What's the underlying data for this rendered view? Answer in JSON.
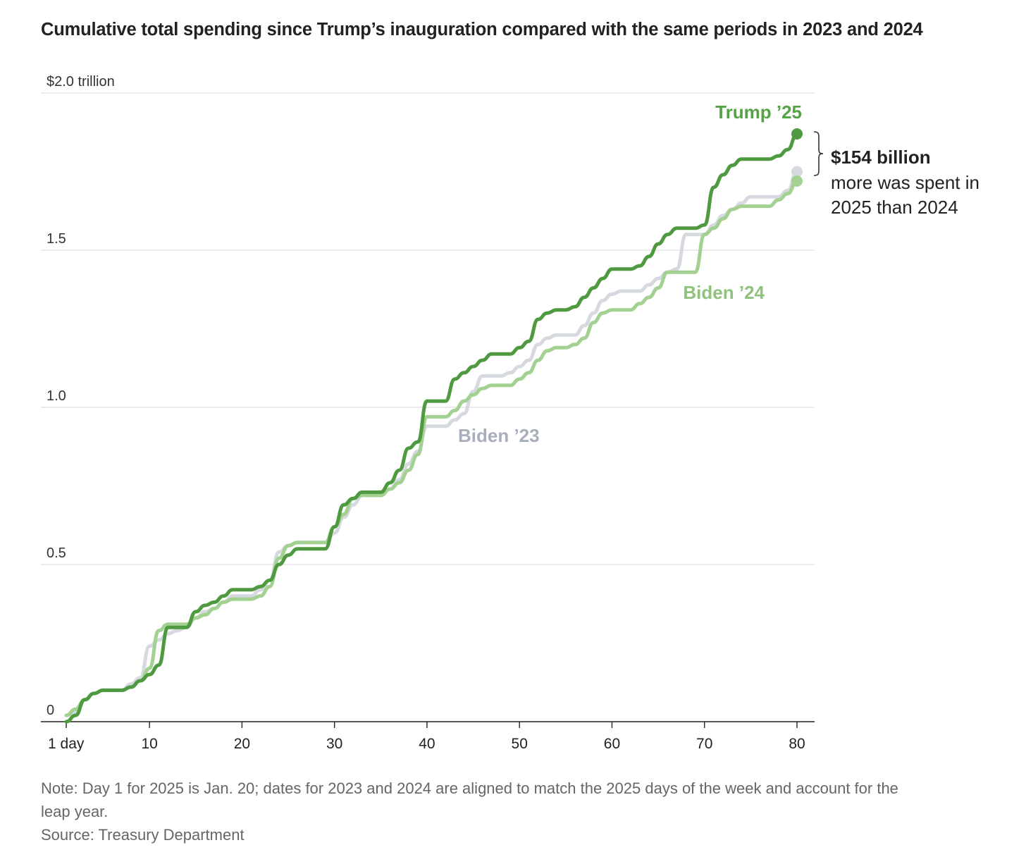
{
  "chart_data": {
    "type": "line",
    "title": "Cumulative total spending since Trump’s inauguration compared with the same periods in 2023 and 2024",
    "ylim": [
      0,
      2.0
    ],
    "xlim": [
      1,
      80
    ],
    "y_ticks": [
      {
        "value": 0,
        "label": "0"
      },
      {
        "value": 0.5,
        "label": "0.5"
      },
      {
        "value": 1.0,
        "label": "1.0"
      },
      {
        "value": 1.5,
        "label": "1.5"
      },
      {
        "value": 2.0,
        "label": "$2.0 trillion"
      }
    ],
    "x_ticks": [
      {
        "value": 1,
        "label": "1 day"
      },
      {
        "value": 10,
        "label": "10"
      },
      {
        "value": 20,
        "label": "20"
      },
      {
        "value": 30,
        "label": "30"
      },
      {
        "value": 40,
        "label": "40"
      },
      {
        "value": 50,
        "label": "50"
      },
      {
        "value": 60,
        "label": "60"
      },
      {
        "value": 70,
        "label": "70"
      },
      {
        "value": 80,
        "label": "80"
      }
    ],
    "grid": true,
    "series": [
      {
        "name": "Biden ’23",
        "color": "#d7d9e0",
        "label_color": "#a9aebd",
        "points": [
          [
            1,
            0.02
          ],
          [
            2,
            0.03
          ],
          [
            3,
            0.07
          ],
          [
            4,
            0.09
          ],
          [
            5,
            0.1
          ],
          [
            6,
            0.1
          ],
          [
            7,
            0.1
          ],
          [
            8,
            0.12
          ],
          [
            9,
            0.14
          ],
          [
            10,
            0.24
          ],
          [
            11,
            0.26
          ],
          [
            12,
            0.28
          ],
          [
            13,
            0.29
          ],
          [
            14,
            0.3
          ],
          [
            15,
            0.33
          ],
          [
            16,
            0.35
          ],
          [
            17,
            0.36
          ],
          [
            18,
            0.38
          ],
          [
            19,
            0.4
          ],
          [
            20,
            0.4
          ],
          [
            21,
            0.4
          ],
          [
            22,
            0.42
          ],
          [
            23,
            0.45
          ],
          [
            24,
            0.54
          ],
          [
            25,
            0.56
          ],
          [
            26,
            0.57
          ],
          [
            27,
            0.57
          ],
          [
            28,
            0.57
          ],
          [
            29,
            0.57
          ],
          [
            30,
            0.6
          ],
          [
            31,
            0.65
          ],
          [
            32,
            0.69
          ],
          [
            33,
            0.72
          ],
          [
            34,
            0.72
          ],
          [
            35,
            0.72
          ],
          [
            36,
            0.74
          ],
          [
            37,
            0.77
          ],
          [
            38,
            0.82
          ],
          [
            39,
            0.86
          ],
          [
            40,
            0.94
          ],
          [
            41,
            0.94
          ],
          [
            42,
            0.94
          ],
          [
            43,
            0.96
          ],
          [
            44,
            0.98
          ],
          [
            45,
            1.05
          ],
          [
            46,
            1.1
          ],
          [
            47,
            1.1
          ],
          [
            48,
            1.1
          ],
          [
            49,
            1.11
          ],
          [
            50,
            1.13
          ],
          [
            51,
            1.15
          ],
          [
            52,
            1.2
          ],
          [
            53,
            1.22
          ],
          [
            54,
            1.23
          ],
          [
            55,
            1.23
          ],
          [
            56,
            1.23
          ],
          [
            57,
            1.26
          ],
          [
            58,
            1.3
          ],
          [
            59,
            1.34
          ],
          [
            60,
            1.36
          ],
          [
            61,
            1.37
          ],
          [
            62,
            1.37
          ],
          [
            63,
            1.37
          ],
          [
            64,
            1.39
          ],
          [
            65,
            1.41
          ],
          [
            66,
            1.43
          ],
          [
            67,
            1.44
          ],
          [
            68,
            1.55
          ],
          [
            69,
            1.55
          ],
          [
            70,
            1.55
          ],
          [
            71,
            1.58
          ],
          [
            72,
            1.61
          ],
          [
            73,
            1.63
          ],
          [
            74,
            1.65
          ],
          [
            75,
            1.67
          ],
          [
            76,
            1.67
          ],
          [
            77,
            1.67
          ],
          [
            78,
            1.67
          ],
          [
            79,
            1.69
          ],
          [
            80,
            1.75
          ]
        ]
      },
      {
        "name": "Biden ’24",
        "color": "#a3d192",
        "label_color": "#8fc27c",
        "points": [
          [
            1,
            0.02
          ],
          [
            2,
            0.04
          ],
          [
            3,
            0.07
          ],
          [
            4,
            0.09
          ],
          [
            5,
            0.1
          ],
          [
            6,
            0.1
          ],
          [
            7,
            0.1
          ],
          [
            8,
            0.11
          ],
          [
            9,
            0.13
          ],
          [
            10,
            0.17
          ],
          [
            11,
            0.29
          ],
          [
            12,
            0.31
          ],
          [
            13,
            0.31
          ],
          [
            14,
            0.31
          ],
          [
            15,
            0.33
          ],
          [
            16,
            0.34
          ],
          [
            17,
            0.36
          ],
          [
            18,
            0.38
          ],
          [
            19,
            0.39
          ],
          [
            20,
            0.39
          ],
          [
            21,
            0.39
          ],
          [
            22,
            0.4
          ],
          [
            23,
            0.43
          ],
          [
            24,
            0.52
          ],
          [
            25,
            0.56
          ],
          [
            26,
            0.57
          ],
          [
            27,
            0.57
          ],
          [
            28,
            0.57
          ],
          [
            29,
            0.57
          ],
          [
            30,
            0.62
          ],
          [
            31,
            0.66
          ],
          [
            32,
            0.71
          ],
          [
            33,
            0.72
          ],
          [
            34,
            0.72
          ],
          [
            35,
            0.72
          ],
          [
            36,
            0.74
          ],
          [
            37,
            0.76
          ],
          [
            38,
            0.8
          ],
          [
            39,
            0.85
          ],
          [
            40,
            0.97
          ],
          [
            41,
            0.97
          ],
          [
            42,
            0.97
          ],
          [
            43,
            0.99
          ],
          [
            44,
            1.02
          ],
          [
            45,
            1.04
          ],
          [
            46,
            1.06
          ],
          [
            47,
            1.07
          ],
          [
            48,
            1.07
          ],
          [
            49,
            1.07
          ],
          [
            50,
            1.09
          ],
          [
            51,
            1.11
          ],
          [
            52,
            1.15
          ],
          [
            53,
            1.18
          ],
          [
            54,
            1.19
          ],
          [
            55,
            1.19
          ],
          [
            56,
            1.2
          ],
          [
            57,
            1.22
          ],
          [
            58,
            1.27
          ],
          [
            59,
            1.3
          ],
          [
            60,
            1.31
          ],
          [
            61,
            1.31
          ],
          [
            62,
            1.31
          ],
          [
            63,
            1.33
          ],
          [
            64,
            1.35
          ],
          [
            65,
            1.38
          ],
          [
            66,
            1.43
          ],
          [
            67,
            1.43
          ],
          [
            68,
            1.43
          ],
          [
            69,
            1.43
          ],
          [
            70,
            1.55
          ],
          [
            71,
            1.57
          ],
          [
            72,
            1.6
          ],
          [
            73,
            1.63
          ],
          [
            74,
            1.64
          ],
          [
            75,
            1.64
          ],
          [
            76,
            1.64
          ],
          [
            77,
            1.64
          ],
          [
            78,
            1.66
          ],
          [
            79,
            1.68
          ],
          [
            80,
            1.72
          ]
        ]
      },
      {
        "name": "Trump ’25",
        "color": "#4f9a41",
        "label_color": "#56a347",
        "points": [
          [
            1,
            0.0
          ],
          [
            2,
            0.02
          ],
          [
            3,
            0.07
          ],
          [
            4,
            0.09
          ],
          [
            5,
            0.1
          ],
          [
            6,
            0.1
          ],
          [
            7,
            0.1
          ],
          [
            8,
            0.11
          ],
          [
            9,
            0.13
          ],
          [
            10,
            0.15
          ],
          [
            11,
            0.18
          ],
          [
            12,
            0.3
          ],
          [
            13,
            0.3
          ],
          [
            14,
            0.3
          ],
          [
            15,
            0.35
          ],
          [
            16,
            0.37
          ],
          [
            17,
            0.38
          ],
          [
            18,
            0.4
          ],
          [
            19,
            0.42
          ],
          [
            20,
            0.42
          ],
          [
            21,
            0.42
          ],
          [
            22,
            0.43
          ],
          [
            23,
            0.45
          ],
          [
            24,
            0.5
          ],
          [
            25,
            0.53
          ],
          [
            26,
            0.55
          ],
          [
            27,
            0.55
          ],
          [
            28,
            0.55
          ],
          [
            29,
            0.55
          ],
          [
            30,
            0.62
          ],
          [
            31,
            0.69
          ],
          [
            32,
            0.71
          ],
          [
            33,
            0.73
          ],
          [
            34,
            0.73
          ],
          [
            35,
            0.73
          ],
          [
            36,
            0.76
          ],
          [
            37,
            0.8
          ],
          [
            38,
            0.87
          ],
          [
            39,
            0.89
          ],
          [
            40,
            1.02
          ],
          [
            41,
            1.02
          ],
          [
            42,
            1.02
          ],
          [
            43,
            1.09
          ],
          [
            44,
            1.11
          ],
          [
            45,
            1.13
          ],
          [
            46,
            1.15
          ],
          [
            47,
            1.17
          ],
          [
            48,
            1.17
          ],
          [
            49,
            1.17
          ],
          [
            50,
            1.19
          ],
          [
            51,
            1.21
          ],
          [
            52,
            1.28
          ],
          [
            53,
            1.3
          ],
          [
            54,
            1.31
          ],
          [
            55,
            1.31
          ],
          [
            56,
            1.32
          ],
          [
            57,
            1.35
          ],
          [
            58,
            1.38
          ],
          [
            59,
            1.41
          ],
          [
            60,
            1.44
          ],
          [
            61,
            1.44
          ],
          [
            62,
            1.44
          ],
          [
            63,
            1.45
          ],
          [
            64,
            1.48
          ],
          [
            65,
            1.52
          ],
          [
            66,
            1.55
          ],
          [
            67,
            1.57
          ],
          [
            68,
            1.57
          ],
          [
            69,
            1.57
          ],
          [
            70,
            1.58
          ],
          [
            71,
            1.7
          ],
          [
            72,
            1.74
          ],
          [
            73,
            1.77
          ],
          [
            74,
            1.79
          ],
          [
            75,
            1.79
          ],
          [
            76,
            1.79
          ],
          [
            77,
            1.79
          ],
          [
            78,
            1.8
          ],
          [
            79,
            1.82
          ],
          [
            80,
            1.87
          ]
        ]
      }
    ],
    "annotation": {
      "value": "$154 billion",
      "text_line1": "more was spent in",
      "text_line2": "2025 than 2024"
    }
  },
  "notes": {
    "note_line1": "Note: Day 1 for 2025 is Jan. 20; dates for 2023 and 2024 are aligned to match the 2025 days of the week and account for the",
    "note_line2": "leap year.",
    "source": "Source: Treasury Department"
  }
}
